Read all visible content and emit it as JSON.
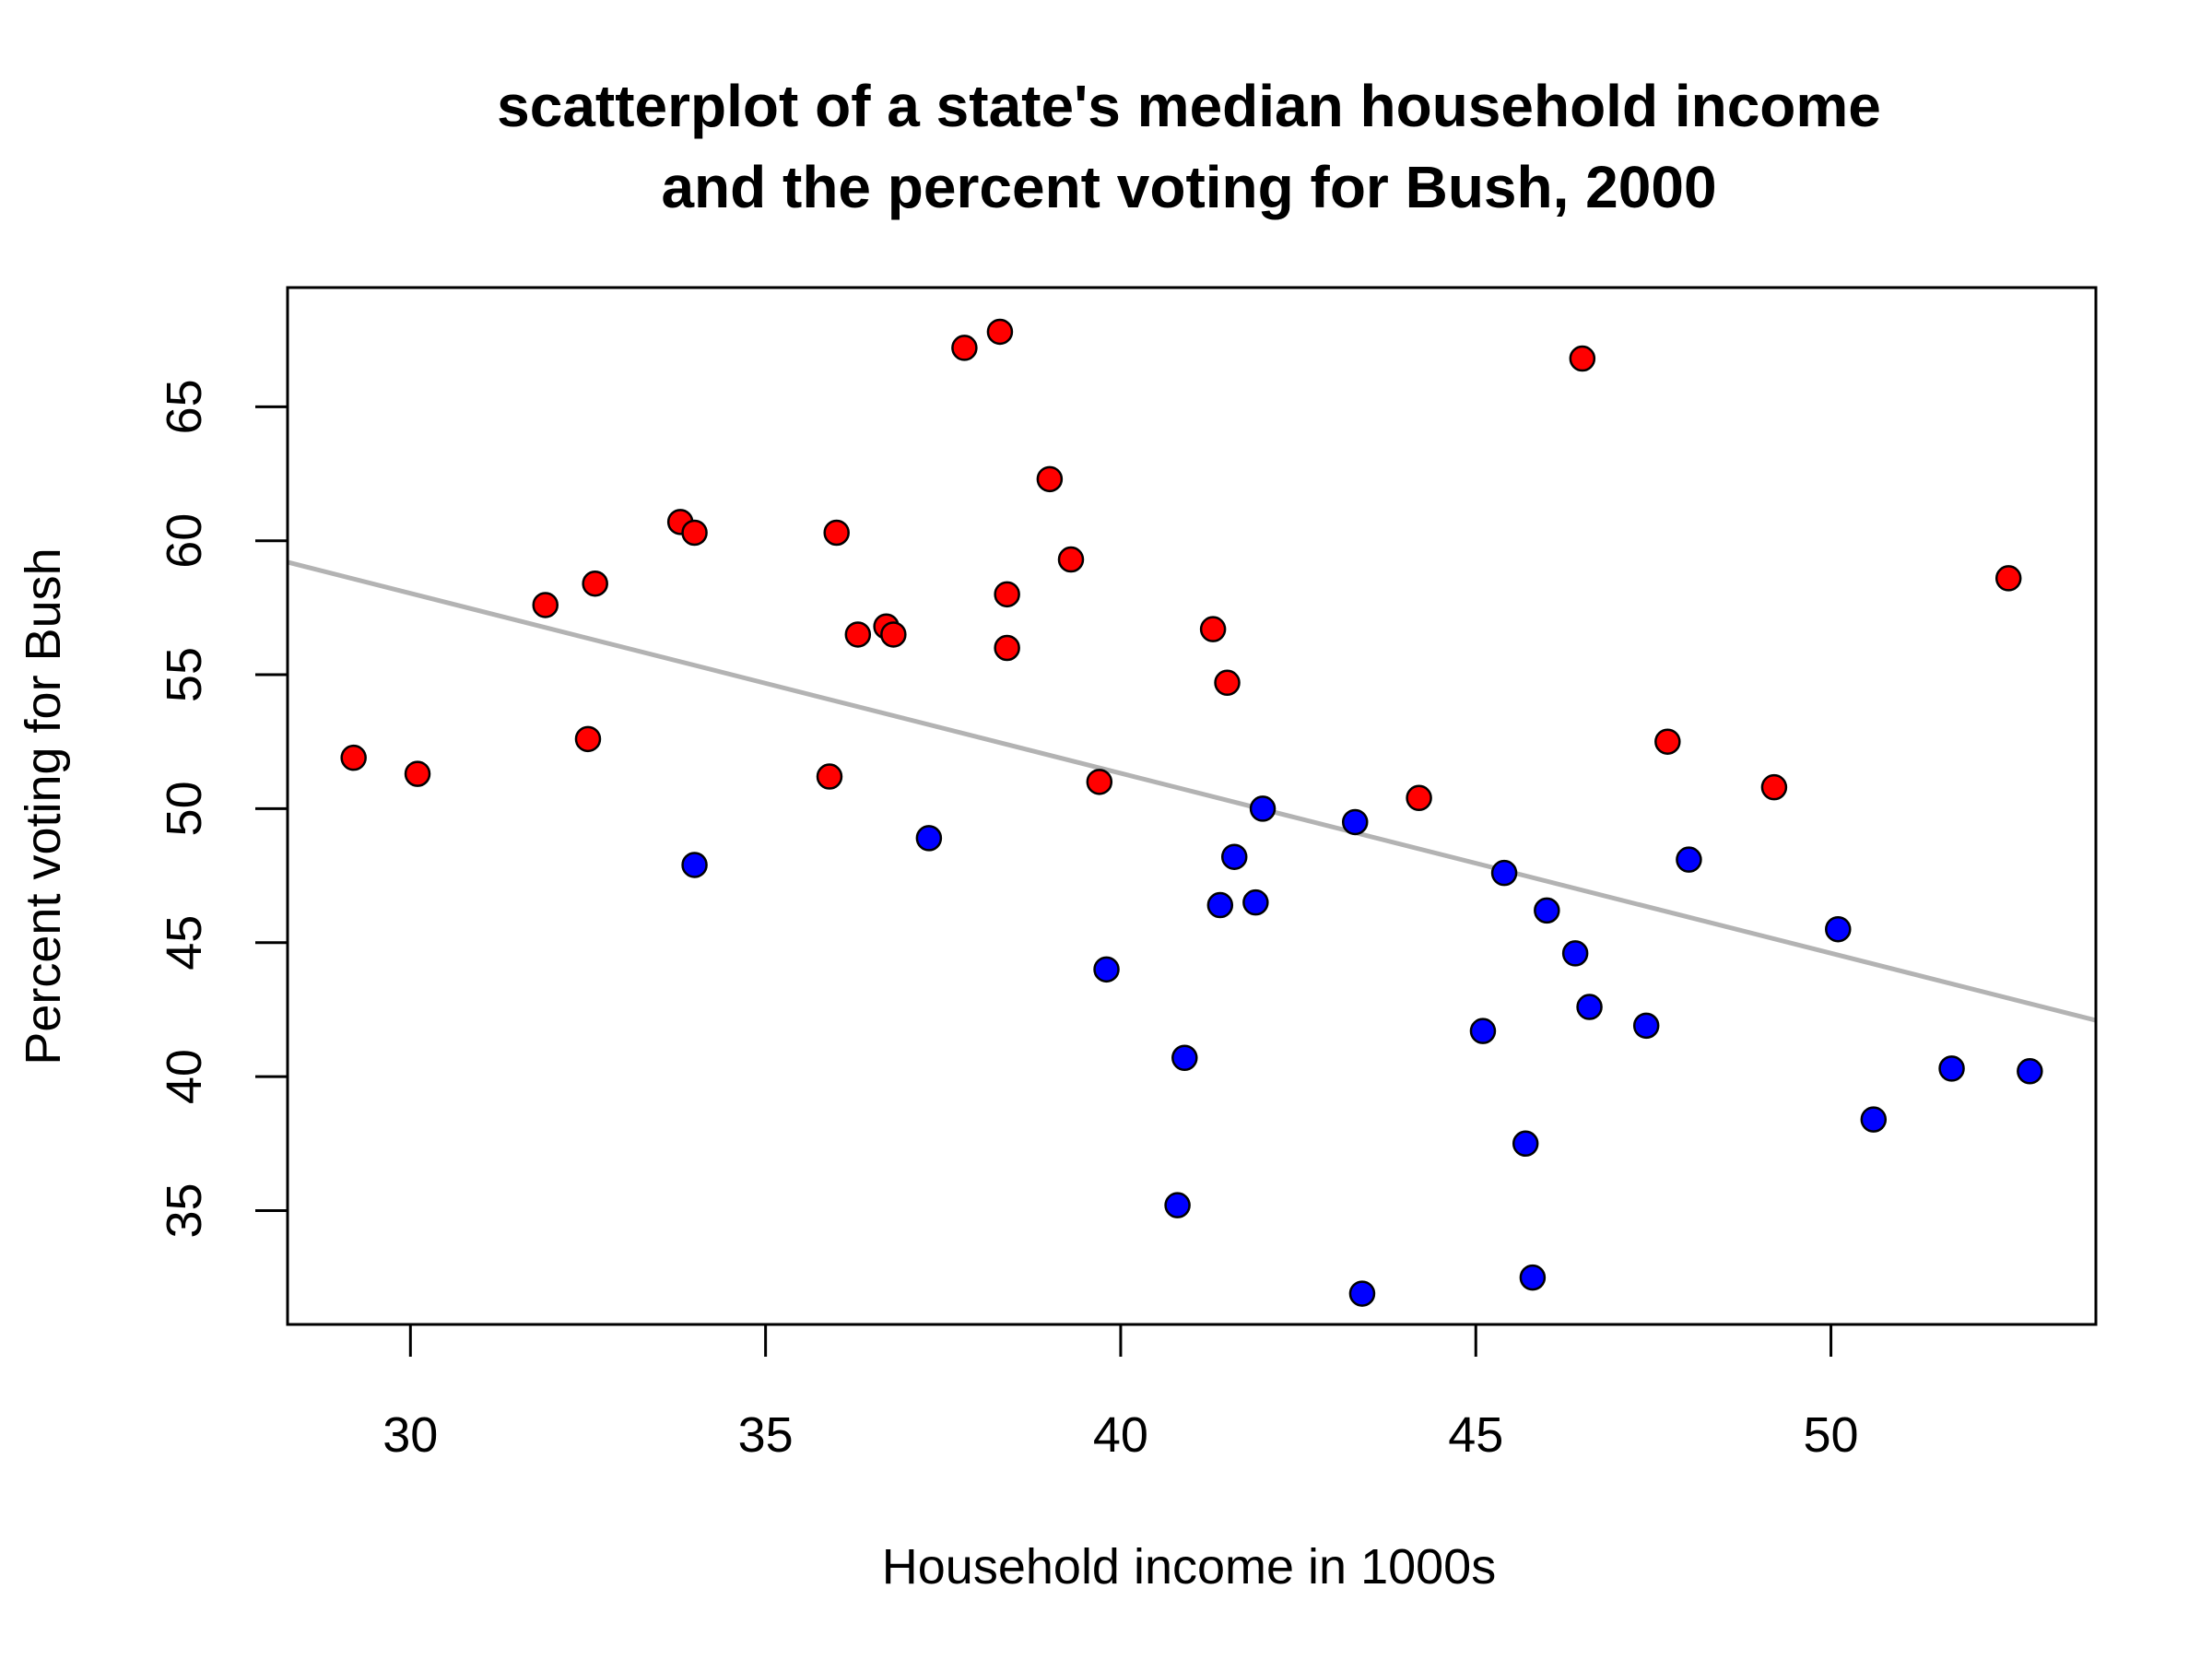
{
  "chart_data": {
    "type": "scatter",
    "title_lines": [
      "scatterplot of a state's median household income",
      "and the percent voting for Bush, 2000"
    ],
    "xlabel": "Household income in 1000s",
    "ylabel": "Percent voting for Bush",
    "xlim": [
      28.27,
      53.73
    ],
    "ylim": [
      30.75,
      69.45
    ],
    "x_ticks": [
      30,
      35,
      40,
      45,
      50
    ],
    "y_ticks": [
      35,
      40,
      45,
      50,
      55,
      60,
      65
    ],
    "grid": false,
    "legend": "none",
    "fit_line": {
      "x": [
        28.27,
        53.73
      ],
      "y": [
        59.2,
        42.1
      ],
      "color": "#b3b3b3"
    },
    "series": [
      {
        "color": "#ff0000",
        "points": [
          [
            29.2,
            51.9
          ],
          [
            30.1,
            51.3
          ],
          [
            31.9,
            57.6
          ],
          [
            32.5,
            52.6
          ],
          [
            32.6,
            58.4
          ],
          [
            33.8,
            60.7
          ],
          [
            34.0,
            60.3
          ],
          [
            35.9,
            51.2
          ],
          [
            36.0,
            60.3
          ],
          [
            36.3,
            56.5
          ],
          [
            36.7,
            56.8
          ],
          [
            36.8,
            56.5
          ],
          [
            37.8,
            67.2
          ],
          [
            38.3,
            67.8
          ],
          [
            38.4,
            58.0
          ],
          [
            38.4,
            56.0
          ],
          [
            39.0,
            62.3
          ],
          [
            39.3,
            59.3
          ],
          [
            39.7,
            51.0
          ],
          [
            41.3,
            56.7
          ],
          [
            41.5,
            54.7
          ],
          [
            44.2,
            50.4
          ],
          [
            46.5,
            66.8
          ],
          [
            47.7,
            52.5
          ],
          [
            49.2,
            50.8
          ],
          [
            52.5,
            58.6
          ]
        ]
      },
      {
        "color": "#0000ff",
        "points": [
          [
            34.0,
            47.9
          ],
          [
            37.3,
            48.9
          ],
          [
            39.8,
            44.0
          ],
          [
            40.8,
            35.2
          ],
          [
            40.9,
            40.7
          ],
          [
            41.4,
            46.4
          ],
          [
            41.6,
            48.2
          ],
          [
            41.9,
            46.5
          ],
          [
            42.0,
            50.0
          ],
          [
            43.3,
            49.5
          ],
          [
            43.4,
            31.9
          ],
          [
            45.1,
            41.7
          ],
          [
            45.4,
            47.6
          ],
          [
            45.7,
            37.5
          ],
          [
            45.8,
            32.5
          ],
          [
            46.0,
            46.2
          ],
          [
            46.4,
            44.6
          ],
          [
            46.6,
            42.6
          ],
          [
            47.4,
            41.9
          ],
          [
            48.0,
            48.1
          ],
          [
            50.1,
            45.5
          ],
          [
            50.6,
            38.4
          ],
          [
            51.7,
            40.3
          ],
          [
            52.8,
            40.2
          ]
        ]
      }
    ]
  }
}
